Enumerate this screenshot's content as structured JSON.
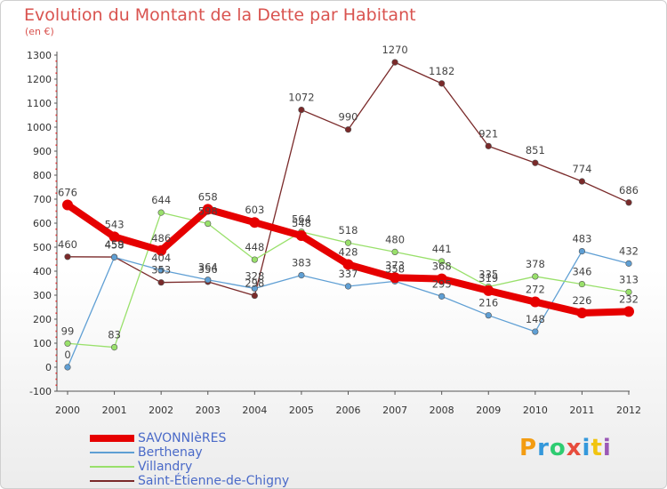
{
  "title": "Evolution du Montant de la Dette par Habitant",
  "subtitle": "(en €)",
  "logo": {
    "text": "Proxiti",
    "colors": [
      "#f39c12",
      "#3498db",
      "#2ecc71",
      "#e74c3c",
      "#3498db",
      "#f1c40f",
      "#9b59b6"
    ]
  },
  "chart_data": {
    "type": "line",
    "title": "Evolution du Montant de la Dette par Habitant",
    "subtitle": "(en €)",
    "x": [
      "2000",
      "2001",
      "2002",
      "2003",
      "2004",
      "2005",
      "2006",
      "2007",
      "2008",
      "2009",
      "2010",
      "2011",
      "2012"
    ],
    "ylim": [
      -100,
      1300
    ],
    "yticks": [
      -100,
      0,
      100,
      200,
      300,
      400,
      500,
      600,
      700,
      800,
      900,
      1000,
      1100,
      1200,
      1300
    ],
    "grid": false,
    "legend_position": "bottom-left",
    "series": [
      {
        "name": "SAVONNIèRES",
        "color": "#e60000",
        "width": 8,
        "values": [
          676,
          543,
          486,
          658,
          603,
          548,
          428,
          373,
          368,
          319,
          272,
          226,
          232
        ],
        "labels": [
          "676",
          "543",
          "486",
          "658",
          "603",
          "548",
          "428",
          "373",
          "368",
          "319",
          "272",
          "226",
          "232"
        ]
      },
      {
        "name": "Berthenay",
        "color": "#5f9fd4",
        "width": 1.3,
        "values": [
          0,
          458,
          404,
          364,
          328,
          383,
          337,
          358,
          295,
          216,
          148,
          483,
          432
        ],
        "labels": [
          "0",
          "458",
          "404",
          "364",
          "328",
          "383",
          "337",
          "358",
          "295",
          "216",
          "148",
          "483",
          "432"
        ]
      },
      {
        "name": "Villandry",
        "color": "#99e06b",
        "width": 1.3,
        "values": [
          99,
          83,
          644,
          598,
          448,
          564,
          518,
          480,
          441,
          335,
          378,
          346,
          313
        ],
        "labels": [
          "99",
          "83",
          "644",
          "598",
          "448",
          "564",
          "518",
          "480",
          "441",
          "335",
          "378",
          "346",
          "313"
        ]
      },
      {
        "name": "Saint-Étienne-de-Chigny",
        "color": "#7a2a2a",
        "width": 1.3,
        "values": [
          460,
          459,
          353,
          356,
          298,
          1072,
          990,
          1270,
          1182,
          921,
          851,
          774,
          686
        ],
        "labels": [
          "460",
          "459",
          "353",
          "356",
          "298",
          "1072",
          "990",
          "1270",
          "1182",
          "921",
          "851",
          "774",
          "686"
        ]
      }
    ]
  }
}
